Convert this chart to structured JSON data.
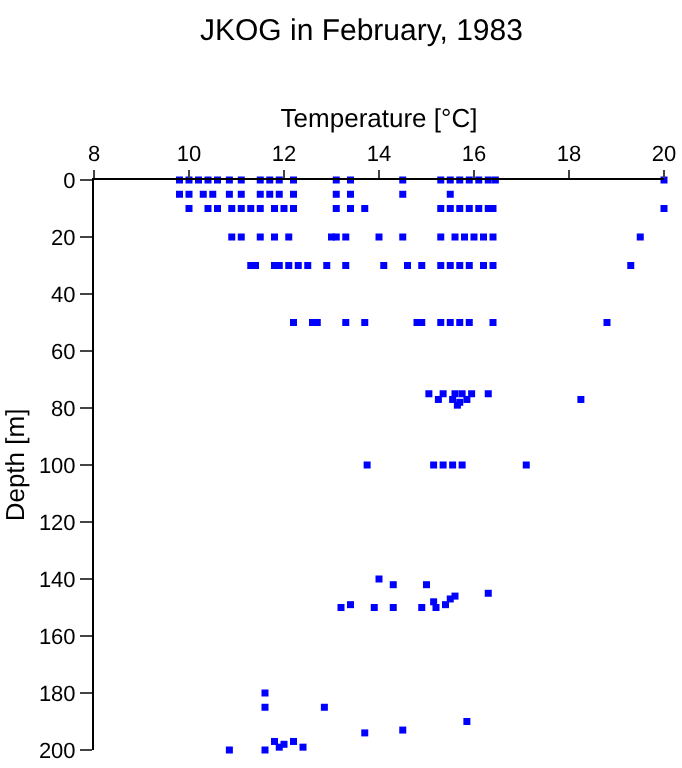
{
  "chart_data": {
    "type": "scatter",
    "title": "JKOG in February, 1983",
    "xlabel": "Temperature [°C]",
    "ylabel": "Depth [m]",
    "x": [
      9.8,
      10.0,
      10.2,
      10.4,
      10.6,
      10.85,
      11.1,
      11.5,
      11.7,
      11.9,
      12.2,
      13.1,
      13.4,
      14.5,
      15.3,
      15.5,
      15.7,
      15.9,
      16.1,
      16.3,
      16.45,
      20.0,
      9.8,
      10.0,
      10.3,
      10.5,
      10.85,
      11.1,
      11.5,
      11.7,
      11.9,
      12.2,
      13.1,
      13.4,
      14.5,
      15.5,
      10.0,
      10.4,
      10.6,
      10.9,
      11.1,
      11.3,
      11.5,
      11.8,
      12.0,
      12.2,
      13.1,
      13.4,
      13.7,
      15.3,
      15.5,
      15.7,
      15.9,
      16.1,
      16.3,
      16.4,
      20.0,
      10.9,
      11.1,
      11.5,
      11.8,
      12.1,
      13.0,
      13.1,
      13.3,
      14.0,
      14.5,
      15.3,
      15.6,
      15.8,
      16.0,
      16.2,
      16.4,
      19.5,
      11.3,
      11.4,
      11.8,
      11.9,
      12.1,
      12.3,
      12.5,
      12.9,
      13.3,
      14.1,
      14.6,
      14.9,
      15.3,
      15.5,
      15.7,
      15.9,
      16.2,
      16.4,
      19.3,
      12.2,
      12.6,
      12.7,
      13.3,
      13.7,
      14.8,
      14.9,
      15.3,
      15.5,
      15.7,
      15.9,
      16.4,
      18.8,
      15.05,
      15.35,
      15.6,
      15.75,
      15.95,
      16.3,
      15.25,
      15.55,
      15.85,
      18.25,
      15.65,
      15.7,
      13.75,
      15.15,
      15.35,
      15.55,
      15.75,
      17.1,
      14.0,
      14.3,
      15.0,
      16.3,
      15.6,
      15.5,
      15.15,
      15.4,
      15.2,
      14.9,
      14.3,
      13.9,
      13.4,
      13.2,
      11.6,
      11.6,
      12.85,
      15.85,
      14.5,
      13.7,
      11.8,
      12.2,
      12.0,
      11.9,
      12.4,
      10.85,
      11.6
    ],
    "values": [
      0,
      0,
      0,
      0,
      0,
      0,
      0,
      0,
      0,
      0,
      0,
      0,
      0,
      0,
      0,
      0,
      0,
      0,
      0,
      0,
      0,
      0,
      5,
      5,
      5,
      5,
      5,
      5,
      5,
      5,
      5,
      5,
      5,
      5,
      5,
      5,
      10,
      10,
      10,
      10,
      10,
      10,
      10,
      10,
      10,
      10,
      10,
      10,
      10,
      10,
      10,
      10,
      10,
      10,
      10,
      10,
      10,
      20,
      20,
      20,
      20,
      20,
      20,
      20,
      20,
      20,
      20,
      20,
      20,
      20,
      20,
      20,
      20,
      20,
      30,
      30,
      30,
      30,
      30,
      30,
      30,
      30,
      30,
      30,
      30,
      30,
      30,
      30,
      30,
      30,
      30,
      30,
      30,
      50,
      50,
      50,
      50,
      50,
      50,
      50,
      50,
      50,
      50,
      50,
      50,
      50,
      75,
      75,
      75,
      75,
      75,
      75,
      77,
      77,
      77,
      77,
      79,
      78,
      100,
      100,
      100,
      100,
      100,
      100,
      140,
      142,
      142,
      145,
      146,
      147,
      148,
      149,
      150,
      150,
      150,
      150,
      149,
      150,
      180,
      185,
      185,
      190,
      193,
      194,
      197,
      197,
      198,
      199,
      199,
      200,
      200
    ],
    "color": "#0000ff",
    "marker": "square",
    "grid": false,
    "xlim": [
      8,
      20
    ],
    "xticks": [
      8,
      10,
      12,
      14,
      16,
      18,
      20
    ],
    "ylim": [
      200,
      0
    ],
    "yticks": [
      0,
      20,
      40,
      60,
      80,
      100,
      120,
      140,
      160,
      180,
      200
    ]
  }
}
